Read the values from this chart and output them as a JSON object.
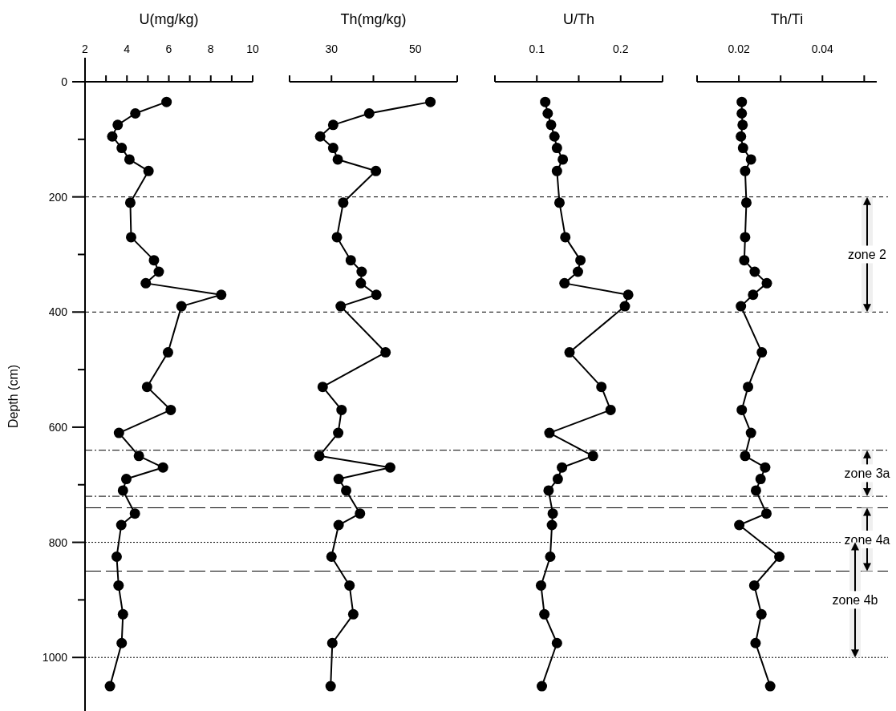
{
  "chart_data": [
    {
      "type": "line",
      "title": "U(mg/kg)",
      "ylabel": "Depth (cm)",
      "marker": "circle",
      "xlim": [
        2,
        10
      ],
      "xticks": [
        2,
        {
          "value": 3,
          "label": null
        },
        4,
        {
          "value": 5,
          "label": null
        },
        6,
        {
          "value": 7,
          "label": null
        },
        8,
        {
          "value": 9,
          "label": null
        },
        10
      ],
      "ylim": [
        1093,
        0
      ],
      "yticks": [
        0,
        {
          "value": 100,
          "label": null
        },
        200,
        {
          "value": 300,
          "label": null
        },
        400,
        {
          "value": 500,
          "label": null
        },
        600,
        {
          "value": 700,
          "label": null
        },
        800,
        {
          "value": 900,
          "label": null
        },
        1000
      ],
      "series": [
        {
          "color": "#000000",
          "x": [
            5.89,
            4.4,
            3.56,
            3.3,
            3.75,
            4.12,
            5.03,
            4.16,
            4.2,
            5.29,
            5.52,
            4.9,
            8.5,
            6.6,
            5.96,
            4.96,
            6.09,
            3.62,
            4.57,
            5.72,
            3.97,
            3.81,
            4.38,
            3.73,
            3.51,
            3.6,
            3.81,
            3.75,
            3.19
          ],
          "values": [
            35,
            55,
            75,
            95,
            115,
            135,
            155,
            210,
            270,
            310,
            330,
            350,
            370,
            390,
            470,
            530,
            570,
            610,
            650,
            670,
            690,
            710,
            750,
            770,
            825,
            875,
            925,
            975,
            1050
          ]
        }
      ],
      "ref_lines": [
        {
          "axis": "y",
          "value": 200,
          "line_style": "dashed"
        },
        {
          "axis": "y",
          "value": 400,
          "line_style": "dashed"
        },
        {
          "axis": "y",
          "value": 640,
          "line_style": "dashdot"
        },
        {
          "axis": "y",
          "value": 720,
          "line_style": "dashdot"
        },
        {
          "axis": "y",
          "value": 740,
          "line_style": "longdash"
        },
        {
          "axis": "y",
          "value": 800,
          "line_style": "dotted"
        },
        {
          "axis": "y",
          "value": 850,
          "line_style": "longdash"
        },
        {
          "axis": "y",
          "value": 1000,
          "line_style": "dotted"
        }
      ]
    },
    {
      "type": "line",
      "title": "Th(mg/kg)",
      "marker": "circle",
      "tick_labels": "x",
      "xlim": [
        20,
        60
      ],
      "xticks": [
        {
          "value": 20,
          "label": null
        },
        30,
        {
          "value": 40,
          "label": null
        },
        50,
        {
          "value": 60,
          "label": null
        }
      ],
      "ylim": [
        1093,
        0
      ],
      "series": [
        {
          "color": "#000000",
          "x": [
            53.6,
            39.0,
            30.4,
            27.3,
            30.4,
            31.5,
            40.6,
            32.8,
            31.3,
            34.6,
            37.2,
            37.0,
            40.7,
            32.2,
            42.9,
            27.9,
            32.4,
            31.6,
            27.1,
            44.0,
            31.7,
            33.5,
            36.8,
            31.7,
            30.0,
            34.3,
            35.2,
            30.2,
            29.8
          ],
          "values": [
            35,
            55,
            75,
            95,
            115,
            135,
            155,
            210,
            270,
            310,
            330,
            350,
            370,
            390,
            470,
            530,
            570,
            610,
            650,
            670,
            690,
            710,
            750,
            770,
            825,
            875,
            925,
            975,
            1050
          ]
        }
      ]
    },
    {
      "type": "line",
      "title": "U/Th",
      "marker": "circle",
      "tick_labels": "x",
      "xlim": [
        0.05,
        0.25
      ],
      "xticks": [
        {
          "value": 0.05,
          "label": null
        },
        0.1,
        {
          "value": 0.15,
          "label": null
        },
        0.2,
        {
          "value": 0.25,
          "label": null
        }
      ],
      "ylim": [
        1093,
        0
      ],
      "series": [
        {
          "color": "#000000",
          "x": [
            0.11,
            0.113,
            0.117,
            0.121,
            0.124,
            0.131,
            0.124,
            0.127,
            0.134,
            0.152,
            0.149,
            0.133,
            0.209,
            0.205,
            0.139,
            0.177,
            0.188,
            0.115,
            0.167,
            0.13,
            0.125,
            0.114,
            0.119,
            0.118,
            0.116,
            0.105,
            0.109,
            0.124,
            0.106
          ],
          "values": [
            35,
            55,
            75,
            95,
            115,
            135,
            155,
            210,
            270,
            310,
            330,
            350,
            370,
            390,
            470,
            530,
            570,
            610,
            650,
            670,
            690,
            710,
            750,
            770,
            825,
            875,
            925,
            975,
            1050
          ]
        }
      ]
    },
    {
      "type": "line",
      "title": "Th/Ti",
      "marker": "circle",
      "tick_labels": "x",
      "xlim": [
        0.01,
        0.053
      ],
      "xticks": [
        {
          "value": 0.01,
          "label": null
        },
        0.02,
        {
          "value": 0.03,
          "label": null
        },
        0.04,
        {
          "value": 0.05,
          "label": null
        }
      ],
      "ylim": [
        1093,
        0
      ],
      "series": [
        {
          "color": "#000000",
          "x": [
            0.0207,
            0.0207,
            0.0209,
            0.0205,
            0.021,
            0.0229,
            0.0215,
            0.0218,
            0.0215,
            0.0213,
            0.0238,
            0.0267,
            0.0234,
            0.0205,
            0.0255,
            0.0222,
            0.0207,
            0.0229,
            0.0215,
            0.0263,
            0.0252,
            0.0241,
            0.0266,
            0.0201,
            0.0297,
            0.0237,
            0.0254,
            0.024,
            0.0275
          ],
          "xerrors": [
            0.0008,
            0.0008,
            0.0008,
            0.0008,
            0.0008,
            0.0008,
            0.0008,
            0.0008,
            0.0008,
            0.0008,
            0.0008,
            0.0008,
            0.0008,
            0.0008,
            0.0008,
            0.0008,
            0.0008,
            0.0008,
            0.0008,
            0.0008,
            0.0008,
            0.0008,
            0.0008,
            0.0008,
            0.0008,
            0.0008,
            0.0008,
            0.0008,
            0.0008
          ],
          "values": [
            35,
            55,
            75,
            95,
            115,
            135,
            155,
            210,
            270,
            310,
            330,
            350,
            370,
            390,
            470,
            530,
            570,
            610,
            650,
            670,
            690,
            710,
            750,
            770,
            825,
            875,
            925,
            975,
            1050
          ]
        }
      ],
      "bands": [
        {
          "axis": "y",
          "from": 200,
          "to": 400,
          "label": "zone 2"
        },
        {
          "axis": "y",
          "from": 640,
          "to": 720,
          "label": "zone 3a"
        },
        {
          "axis": "y",
          "from": 740,
          "to": 850,
          "label": "zone 4a"
        },
        {
          "axis": "y",
          "from": 800,
          "to": 1000,
          "label": "zone 4b"
        }
      ]
    }
  ]
}
